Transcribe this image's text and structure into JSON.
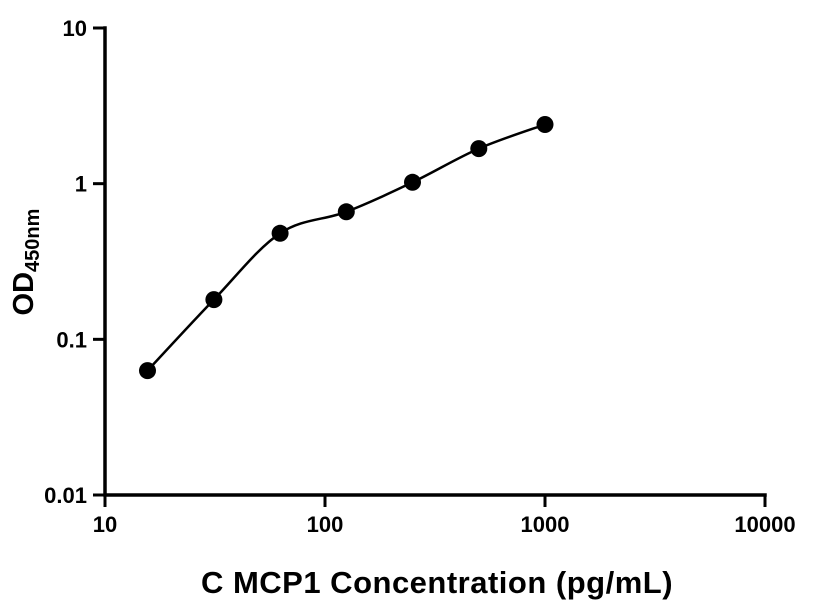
{
  "chart_data": {
    "type": "scatter",
    "title": "",
    "xlabel": "C MCP1 Concentration (pg/mL)",
    "ylabel_main": "OD",
    "ylabel_sub": "450nm",
    "x_scale": "log",
    "y_scale": "log",
    "x_range": [
      10,
      10000
    ],
    "y_range": [
      0.01,
      10
    ],
    "x_ticks": [
      10,
      100,
      1000,
      10000
    ],
    "x_tick_labels": [
      "10",
      "100",
      "1000",
      "10000"
    ],
    "y_ticks": [
      10,
      1,
      0.1,
      0.01
    ],
    "y_tick_labels": [
      "10",
      "1",
      "0.1",
      "0.01"
    ],
    "x": [
      15.6,
      31.25,
      62.5,
      125,
      250,
      500,
      1000
    ],
    "y": [
      0.063,
      0.18,
      0.48,
      0.66,
      1.02,
      1.68,
      2.4
    ],
    "curve": "smooth-fit",
    "marker_shape": "filled-circle",
    "marker_color": "#000000",
    "line_color": "#000000",
    "background_color": "#ffffff",
    "grid": "off",
    "legend": "none"
  }
}
